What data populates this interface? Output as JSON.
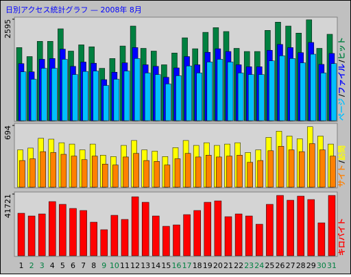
{
  "chart_data": [
    {
      "type": "bar",
      "title": "日別アクセス統計グラフ — 2008年 8月",
      "ylim": [
        0,
        2595
      ],
      "yticks": [
        2595
      ],
      "legend_separator": "/",
      "series": [
        {
          "name": "ヒット",
          "color": "#008040",
          "values": [
            1870,
            1640,
            2030,
            2030,
            2350,
            1780,
            1940,
            1890,
            1340,
            1590,
            1910,
            2420,
            1850,
            1780,
            1430,
            1730,
            2120,
            1840,
            2260,
            2380,
            2280,
            1850,
            1770,
            1770,
            2310,
            2520,
            2420,
            2240,
            2580,
            1850,
            2210
          ]
        },
        {
          "name": "ファイル",
          "color": "#0000ff",
          "values": [
            1460,
            1250,
            1570,
            1590,
            1830,
            1390,
            1500,
            1470,
            1050,
            1240,
            1480,
            1870,
            1430,
            1390,
            1110,
            1350,
            1640,
            1430,
            1750,
            1840,
            1770,
            1430,
            1380,
            1380,
            1800,
            1950,
            1870,
            1740,
            2000,
            1440,
            1720
          ]
        },
        {
          "name": "ページ",
          "color": "#00c0ff",
          "values": [
            1250,
            1060,
            1340,
            1340,
            1570,
            1180,
            1260,
            1270,
            900,
            1060,
            1270,
            1590,
            1220,
            1180,
            940,
            1150,
            1400,
            1220,
            1500,
            1570,
            1500,
            1220,
            1180,
            1180,
            1530,
            1660,
            1590,
            1480,
            1700,
            1220,
            1460
          ]
        }
      ]
    },
    {
      "type": "bar",
      "ylim": [
        0,
        694
      ],
      "yticks": [
        694
      ],
      "legend_separator": "/",
      "series": [
        {
          "name": "訪問",
          "color": "#ffff00",
          "values": [
            420,
            440,
            550,
            540,
            500,
            485,
            420,
            485,
            360,
            345,
            470,
            525,
            420,
            405,
            345,
            445,
            525,
            470,
            500,
            470,
            485,
            500,
            390,
            420,
            560,
            630,
            575,
            545,
            680,
            575,
            485
          ]
        },
        {
          "name": "サイト",
          "color": "#ff8000",
          "values": [
            300,
            320,
            400,
            390,
            370,
            350,
            310,
            350,
            260,
            250,
            340,
            380,
            300,
            290,
            250,
            320,
            380,
            340,
            360,
            340,
            350,
            360,
            280,
            300,
            410,
            460,
            420,
            400,
            490,
            420,
            350
          ]
        }
      ]
    },
    {
      "type": "bar",
      "ylim": [
        0,
        41721
      ],
      "yticks": [
        41721
      ],
      "categories": [
        "1",
        "2",
        "3",
        "4",
        "5",
        "6",
        "7",
        "8",
        "9",
        "10",
        "11",
        "12",
        "13",
        "14",
        "15",
        "16",
        "17",
        "18",
        "19",
        "20",
        "21",
        "22",
        "23",
        "24",
        "25",
        "26",
        "27",
        "28",
        "29",
        "30",
        "31"
      ],
      "category_colors": [
        "#000000",
        "#008040",
        "#008040",
        "#000000",
        "#000000",
        "#000000",
        "#000000",
        "#000000",
        "#008040",
        "#008040",
        "#000000",
        "#000000",
        "#000000",
        "#000000",
        "#000000",
        "#008040",
        "#008040",
        "#000000",
        "#000000",
        "#000000",
        "#000000",
        "#000000",
        "#008040",
        "#008040",
        "#000000",
        "#000000",
        "#000000",
        "#000000",
        "#000000",
        "#008040",
        "#008040"
      ],
      "series": [
        {
          "name": "キロバイト",
          "color": "#ff0000",
          "values": [
            28740,
            26890,
            28280,
            36620,
            34770,
            31990,
            30600,
            22710,
            17620,
            27350,
            24570,
            39870,
            36160,
            26890,
            19930,
            20860,
            27810,
            30600,
            36160,
            37090,
            26420,
            28280,
            26890,
            21320,
            34770,
            40790,
            37550,
            40330,
            38010,
            22250,
            40790
          ]
        }
      ]
    }
  ]
}
